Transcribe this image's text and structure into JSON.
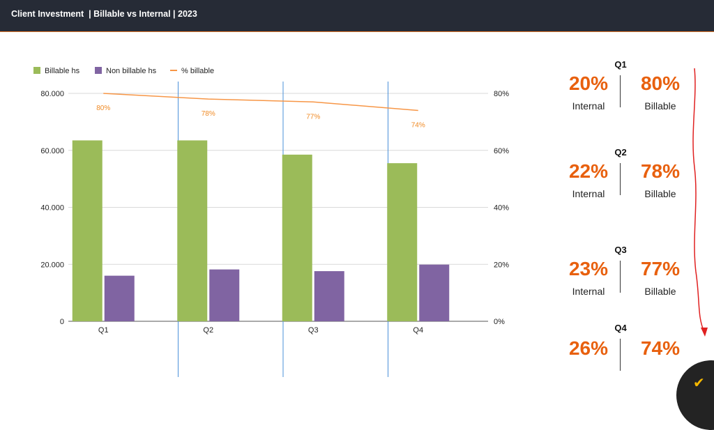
{
  "header": {
    "title": "Client Investment  | Billable vs Internal | 2023"
  },
  "colors": {
    "billable": "#9bbb59",
    "non_billable": "#8064a2",
    "pct_line": "#f79646",
    "accent": "#e8600e",
    "arrow": "#e02020"
  },
  "chart_data": {
    "type": "bar",
    "categories": [
      "Q1",
      "Q2",
      "Q3",
      "Q4"
    ],
    "series": [
      {
        "name": "Billable hs",
        "type": "bar",
        "axis": "left",
        "values": [
          63500,
          63500,
          58500,
          55500
        ]
      },
      {
        "name": "Non billable hs",
        "type": "bar",
        "axis": "left",
        "values": [
          16000,
          18200,
          17600,
          19900
        ]
      },
      {
        "name": "% billable",
        "type": "line",
        "axis": "right",
        "values": [
          80,
          78,
          77,
          74
        ],
        "labels": [
          "80%",
          "78%",
          "77%",
          "74%"
        ]
      }
    ],
    "ylim": [
      0,
      80000
    ],
    "y_ticks": [
      "0",
      "20.000",
      "40.000",
      "60.000",
      "80.000"
    ],
    "y2lim": [
      0,
      80
    ],
    "y2_ticks": [
      "0%",
      "20%",
      "40%",
      "60%",
      "80%"
    ],
    "legend": "top-left",
    "grid": true
  },
  "summary": [
    {
      "quarter": "Q1",
      "internal": "20%",
      "billable": "80%",
      "internal_label": "Internal",
      "billable_label": "Billable"
    },
    {
      "quarter": "Q2",
      "internal": "22%",
      "billable": "78%",
      "internal_label": "Internal",
      "billable_label": "Billable"
    },
    {
      "quarter": "Q3",
      "internal": "23%",
      "billable": "77%",
      "internal_label": "Internal",
      "billable_label": "Billable"
    },
    {
      "quarter": "Q4",
      "internal": "26%",
      "billable": "74%"
    }
  ],
  "corner_icon": "chevron-down-icon"
}
